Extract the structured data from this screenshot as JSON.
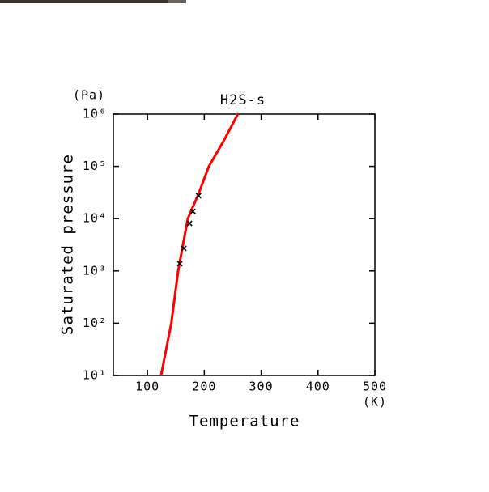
{
  "chart_data": {
    "type": "line",
    "title": "H2S-s",
    "y_unit": "(Pa)",
    "x_unit": "(K)",
    "xlabel": "Temperature",
    "ylabel": "Saturated pressure",
    "xlim": [
      40,
      500
    ],
    "xticks": [
      100,
      200,
      300,
      400,
      500
    ],
    "ylim": [
      10,
      1000000
    ],
    "ylog": true,
    "yticks": [
      {
        "value": 10,
        "label": "10¹"
      },
      {
        "value": 100,
        "label": "10²"
      },
      {
        "value": 1000,
        "label": "10³"
      },
      {
        "value": 10000,
        "label": "10⁴"
      },
      {
        "value": 100000,
        "label": "10⁵"
      },
      {
        "value": 1000000,
        "label": "10⁶"
      }
    ],
    "series": [
      {
        "kind": "curve",
        "color": "#ff0000",
        "x": [
          124,
          133,
          142,
          154,
          171,
          190,
          208,
          235,
          259
        ],
        "values": [
          10,
          32,
          100,
          1000,
          10000,
          30000,
          100000,
          320000,
          1000000
        ]
      },
      {
        "kind": "markers",
        "color": "#000000",
        "x": [
          157,
          164,
          174,
          180,
          190
        ],
        "values": [
          1380,
          2700,
          8100,
          13800,
          27500
        ]
      }
    ]
  }
}
